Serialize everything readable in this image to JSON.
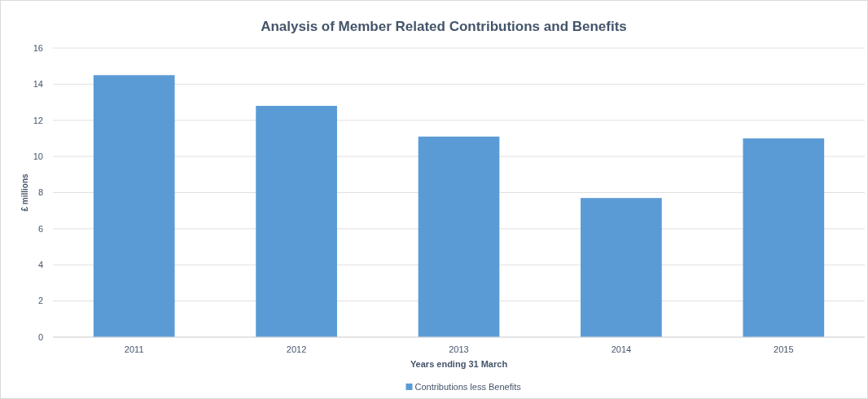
{
  "chart_data": {
    "type": "bar",
    "title": "Analysis of Member Related Contributions  and Benefits",
    "xlabel": "Years ending 31 March",
    "ylabel": "£ millions",
    "categories": [
      "2011",
      "2012",
      "2013",
      "2014",
      "2015"
    ],
    "series": [
      {
        "name": "Contributions less Benefits",
        "color": "#5b9bd5",
        "values": [
          14.5,
          12.8,
          11.1,
          7.7,
          11.0
        ]
      }
    ],
    "ylim": [
      0,
      16
    ],
    "yticks": [
      0,
      2,
      4,
      6,
      8,
      10,
      12,
      14,
      16
    ],
    "grid": "y",
    "legend": "bottom"
  }
}
